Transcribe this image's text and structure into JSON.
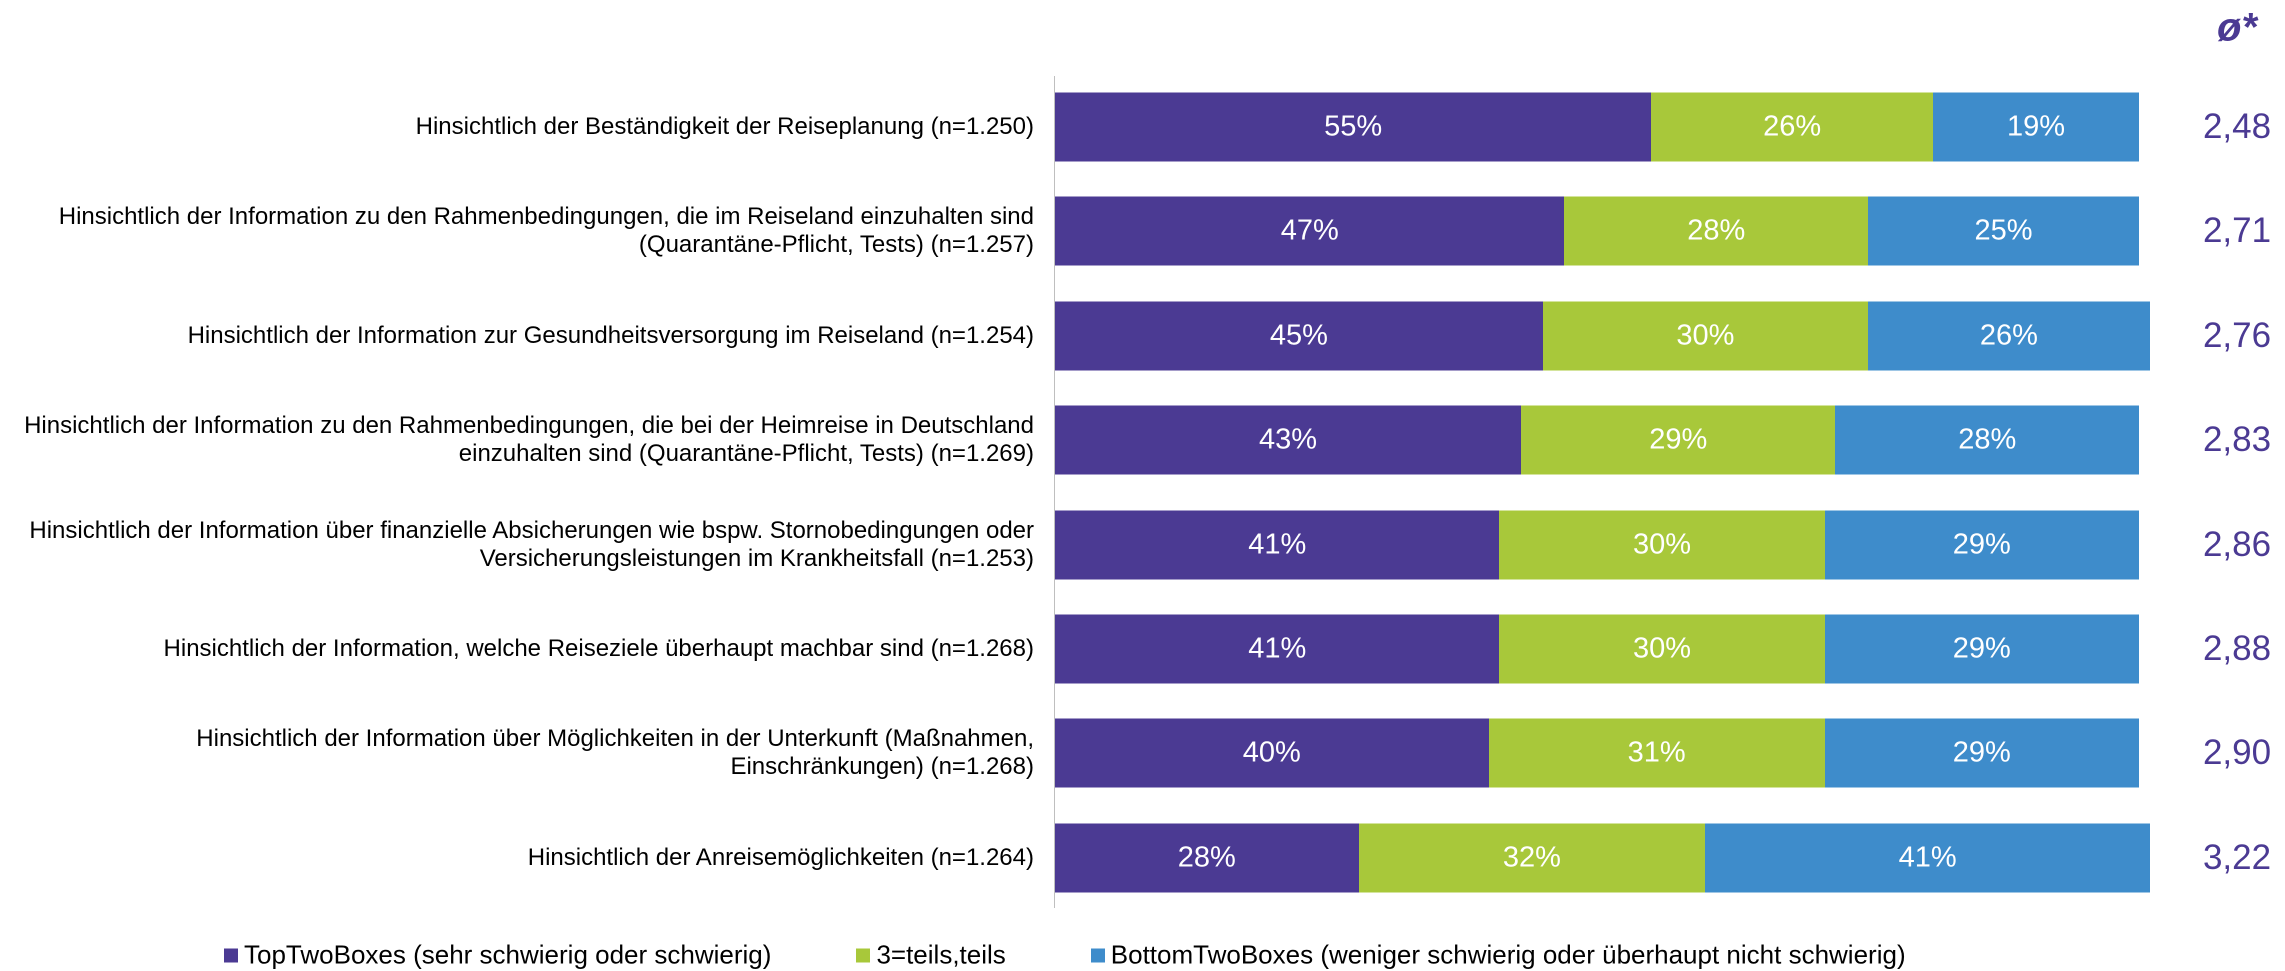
{
  "chart_data": {
    "type": "bar",
    "orientation": "horizontal",
    "stacked": true,
    "categories": [
      [
        "Hinsichtlich der Beständigkeit der Reiseplanung (n=1.250)"
      ],
      [
        "Hinsichtlich der Information zu den Rahmenbedingungen, die im Reiseland einzuhalten sind",
        "(Quarantäne-Pflicht, Tests) (n=1.257)"
      ],
      [
        "Hinsichtlich der Information zur Gesundheitsversorgung im Reiseland (n=1.254)"
      ],
      [
        "Hinsichtlich der Information zu den Rahmenbedingungen, die bei der Heimreise in Deutschland",
        "einzuhalten sind (Quarantäne-Pflicht, Tests) (n=1.269)"
      ],
      [
        "Hinsichtlich der Information über finanzielle Absicherungen wie bspw. Stornobedingungen oder",
        "Versicherungsleistungen im Krankheitsfall (n=1.253)"
      ],
      [
        "Hinsichtlich der Information, welche Reiseziele überhaupt machbar sind (n=1.268)"
      ],
      [
        "Hinsichtlich der Information über Möglichkeiten in der Unterkunft (Maßnahmen,",
        "Einschränkungen) (n=1.268)"
      ],
      [
        "Hinsichtlich der Anreisemöglichkeiten (n=1.264)"
      ]
    ],
    "series": [
      {
        "name": "TopTwoBoxes (sehr schwierig oder schwierig)",
        "color": "#4b3a93",
        "values": [
          55,
          47,
          45,
          43,
          41,
          41,
          40,
          28
        ],
        "value_labels": [
          "55%",
          "47%",
          "45%",
          "43%",
          "41%",
          "41%",
          "40%",
          "28%"
        ]
      },
      {
        "name": "3=teils,teils",
        "color": "#a8c83a",
        "values": [
          26,
          28,
          30,
          29,
          30,
          30,
          31,
          32
        ],
        "value_labels": [
          "26%",
          "28%",
          "30%",
          "29%",
          "30%",
          "30%",
          "31%",
          "32%"
        ]
      },
      {
        "name": "BottomTwoBoxes (weniger schwierig oder überhaupt nicht schwierig)",
        "color": "#3e8ccb",
        "values": [
          19,
          25,
          26,
          28,
          29,
          29,
          29,
          41
        ],
        "value_labels": [
          "19%",
          "25%",
          "26%",
          "28%",
          "29%",
          "29%",
          "29%",
          "41%"
        ]
      }
    ],
    "xlim": [
      0,
      100
    ],
    "mean_title": "ø*",
    "mean_labels": [
      "2,48",
      "2,71",
      "2,76",
      "2,83",
      "2,86",
      "2,88",
      "2,90",
      "3,22"
    ],
    "mean_color": "#4b3a93"
  }
}
